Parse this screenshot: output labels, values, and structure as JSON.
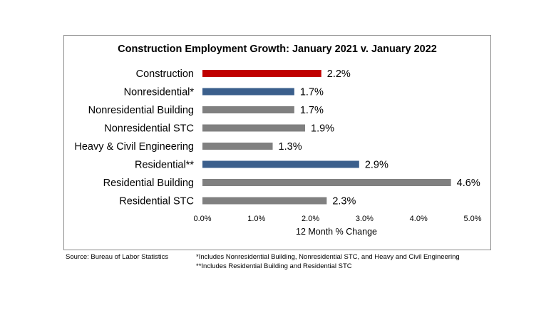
{
  "chart_data": {
    "type": "bar",
    "orientation": "horizontal",
    "title": "Construction Employment Growth: January 2021 v. January 2022",
    "xlabel": "12 Month % Change",
    "ylabel": "",
    "xlim": [
      0,
      5
    ],
    "x_ticks": [
      "0.0%",
      "1.0%",
      "2.0%",
      "3.0%",
      "4.0%",
      "5.0%"
    ],
    "categories": [
      "Construction",
      "Nonresidential*",
      "Nonresidential Building",
      "Nonresidential STC",
      "Heavy & Civil Engineering",
      "Residential**",
      "Residential Building",
      "Residential STC"
    ],
    "values": [
      2.2,
      1.7,
      1.7,
      1.9,
      1.3,
      2.9,
      4.6,
      2.3
    ],
    "value_labels": [
      "2.2%",
      "1.7%",
      "1.7%",
      "1.9%",
      "1.3%",
      "2.9%",
      "4.6%",
      "2.3%"
    ],
    "bar_colors": [
      "#c00000",
      "#3b5f8c",
      "#808080",
      "#808080",
      "#808080",
      "#3b5f8c",
      "#808080",
      "#808080"
    ],
    "grid": false,
    "legend": "none"
  },
  "footer": {
    "source": "Source:  Bureau of Labor Statistics",
    "note1": "*Includes Nonresidential Building, Nonresidential STC, and Heavy and Civil Engineering",
    "note2": "**Includes Residential Building and Residential STC"
  }
}
